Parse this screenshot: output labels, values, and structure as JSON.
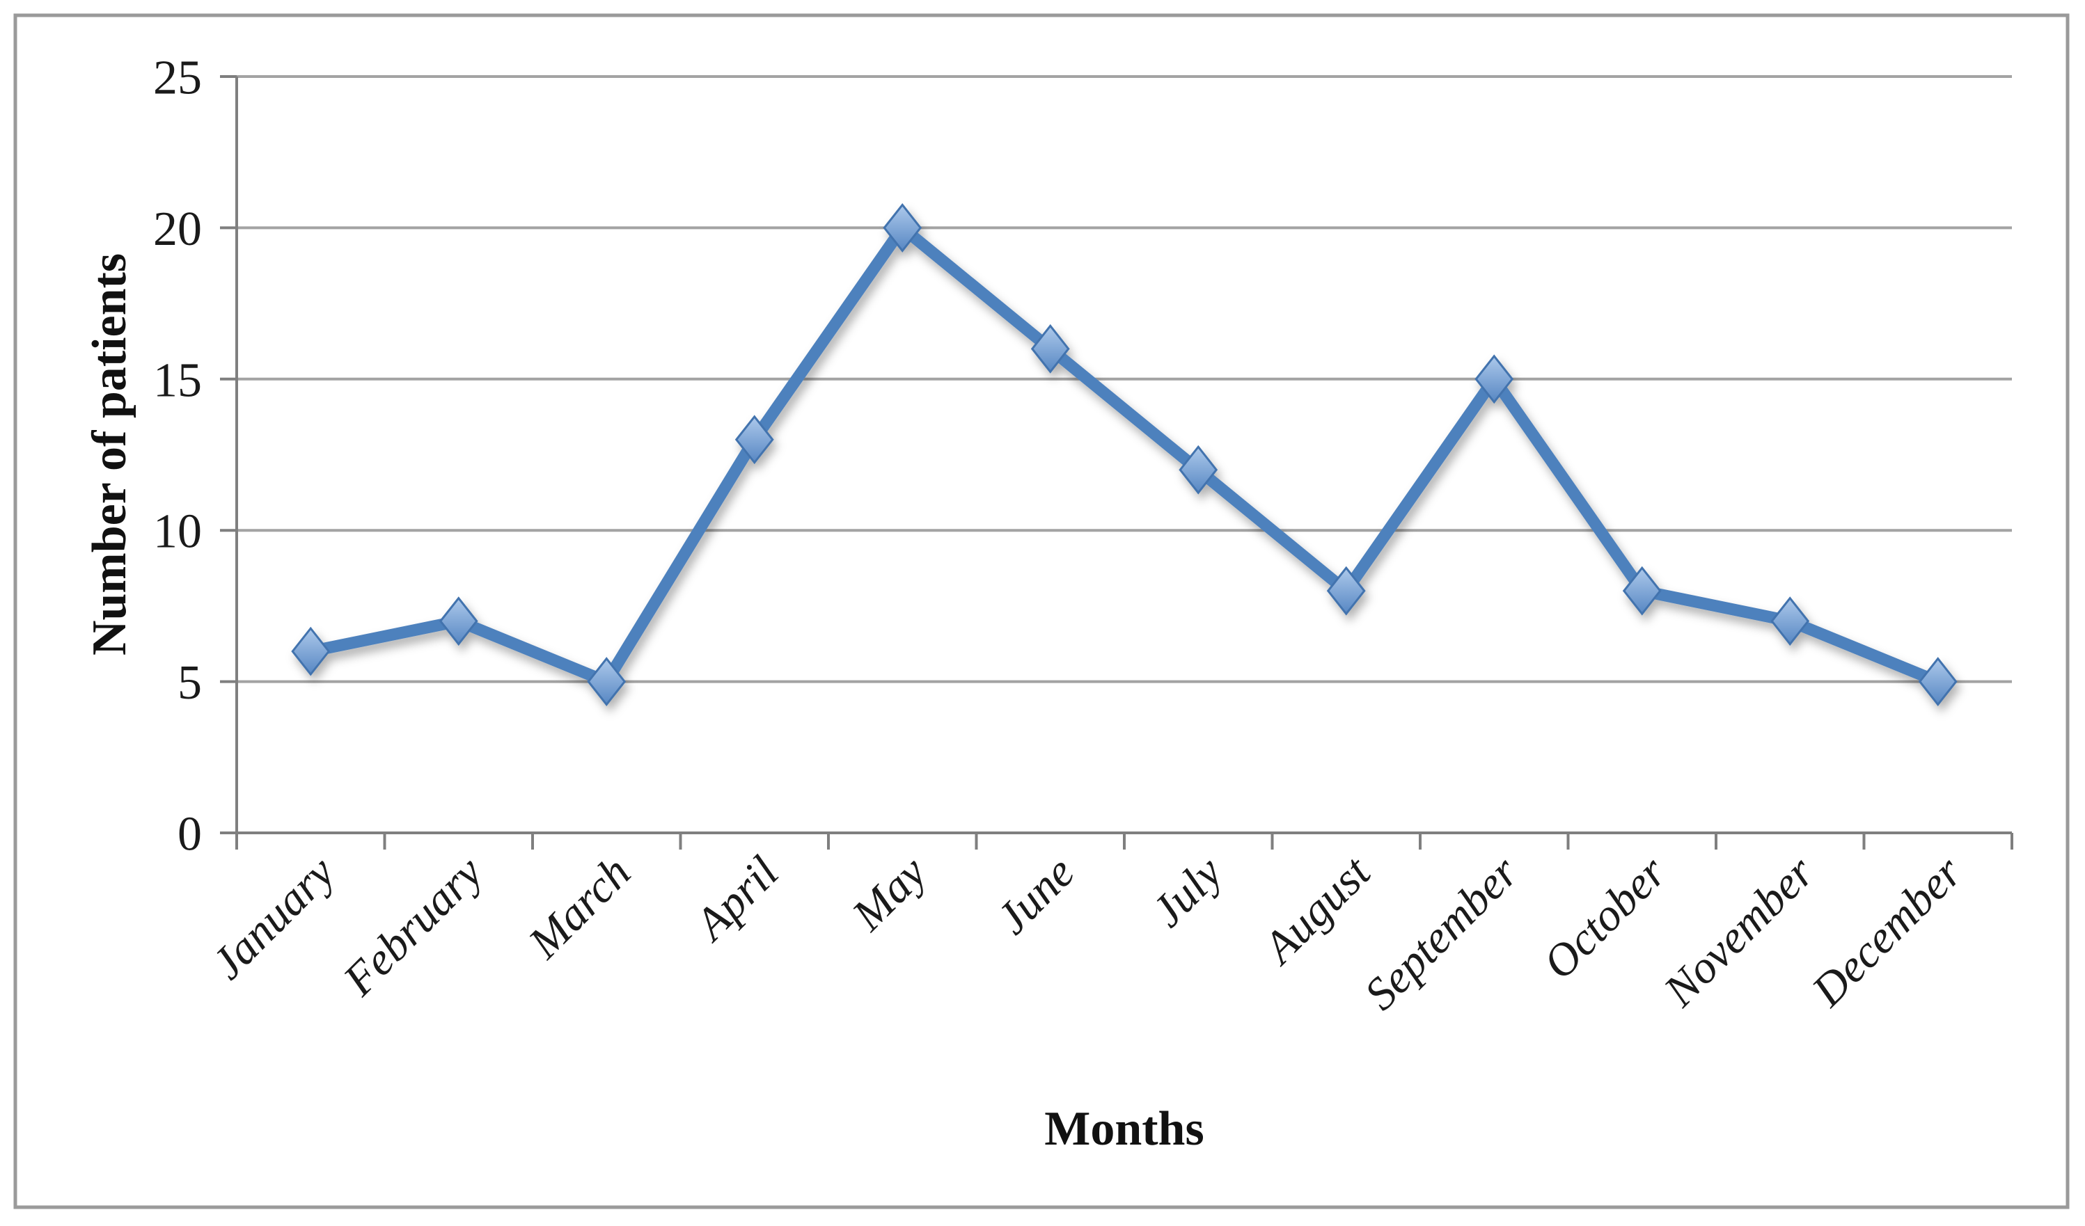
{
  "chart_data": {
    "type": "line",
    "xlabel": "Months",
    "ylabel": "Number of patients",
    "categories": [
      "January",
      "February",
      "March",
      "April",
      "May",
      "June",
      "July",
      "August",
      "September",
      "October",
      "November",
      "December"
    ],
    "values": [
      6,
      7,
      5,
      13,
      20,
      16,
      12,
      8,
      15,
      8,
      7,
      5
    ],
    "ylim": [
      0,
      25
    ],
    "yticks": [
      0,
      5,
      10,
      15,
      20,
      25
    ],
    "grid": "horizontal",
    "legend_position": "none",
    "marker_shape": "diamond",
    "colors": {
      "line": "#4E81BD",
      "marker_fill_top": "#ADC9EB",
      "marker_fill_bottom": "#5787C3",
      "marker_stroke": "#4273AE",
      "gridline": "#A3A3A3",
      "axis": "#7F7F7F",
      "text": "#1A1A1A",
      "figure_border": "#9A9A9A",
      "background": "#FFFFFF"
    }
  }
}
